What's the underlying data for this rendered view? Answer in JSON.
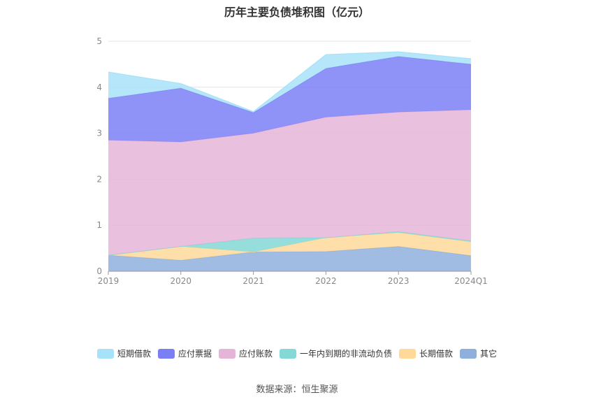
{
  "chart_data": {
    "type": "area",
    "title": "历年主要负债堆积图（亿元）",
    "xlabel": "",
    "ylabel": "",
    "categories": [
      "2019",
      "2020",
      "2021",
      "2022",
      "2023",
      "2024Q1"
    ],
    "ylim": [
      0,
      5
    ],
    "yticks": [
      "0",
      "1",
      "2",
      "3",
      "4",
      "5"
    ],
    "stacked": true,
    "grid": true,
    "legend_position": "bottom",
    "series": [
      {
        "name": "其它",
        "color": "#8fb0dd",
        "values": [
          0.35,
          0.24,
          0.42,
          0.43,
          0.54,
          0.34
        ]
      },
      {
        "name": "长期借款",
        "color": "#ffd99a",
        "values": [
          0.0,
          0.3,
          0.0,
          0.3,
          0.3,
          0.3
        ]
      },
      {
        "name": "一年内到期的非流动负债",
        "color": "#84d8d6",
        "values": [
          0.0,
          0.0,
          0.3,
          0.0,
          0.02,
          0.02
        ]
      },
      {
        "name": "应付账款",
        "color": "#e5b5d8",
        "values": [
          2.5,
          2.27,
          2.28,
          2.62,
          2.6,
          2.85
        ]
      },
      {
        "name": "应付票据",
        "color": "#7b7ff5",
        "values": [
          0.91,
          1.17,
          0.45,
          1.06,
          1.21,
          0.99
        ]
      },
      {
        "name": "短期借款",
        "color": "#a8e2f8",
        "values": [
          0.57,
          0.1,
          0.02,
          0.3,
          0.1,
          0.12
        ]
      }
    ]
  },
  "legend_order": [
    "短期借款",
    "应付票据",
    "应付账款",
    "一年内到期的非流动负债",
    "长期借款",
    "其它"
  ],
  "source_text": "数据来源：恒生聚源"
}
